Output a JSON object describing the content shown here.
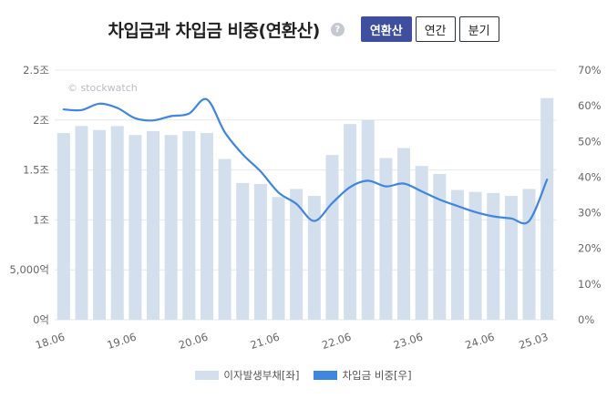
{
  "header": {
    "title": "차입금과 차입금 비중(연환산)",
    "help_icon": "?",
    "tabs": [
      {
        "label": "연환산",
        "active": true
      },
      {
        "label": "연간",
        "active": false
      },
      {
        "label": "분기",
        "active": false
      }
    ]
  },
  "watermark": "© stockwatch",
  "colors": {
    "bar": "#d3dfec",
    "line": "#3f86de",
    "active_tab": "#3d4f9e"
  },
  "chart_data": {
    "type": "bar+line",
    "x_tick_labels": [
      "18.06",
      "19.06",
      "20.06",
      "21.06",
      "22.06",
      "23.06",
      "24.06",
      "25.03"
    ],
    "y_left_ticks": [
      "0억",
      "5,000억",
      "1조",
      "1.5조",
      "2조",
      "2.5조"
    ],
    "y_right_ticks": [
      "0%",
      "10%",
      "20%",
      "30%",
      "40%",
      "50%",
      "60%",
      "70%"
    ],
    "y_left_range": [
      0,
      2.5
    ],
    "y_left_unit": "조",
    "y_right_range": [
      0,
      70
    ],
    "y_right_unit": "%",
    "grid": "horizontal",
    "legend_position": "bottom",
    "series": [
      {
        "name": "이자발생부채[좌]",
        "type": "bar",
        "axis": "left",
        "values": [
          1.87,
          1.94,
          1.9,
          1.94,
          1.85,
          1.89,
          1.85,
          1.89,
          1.87,
          1.61,
          1.37,
          1.36,
          1.23,
          1.31,
          1.24,
          1.65,
          1.96,
          2.0,
          1.62,
          1.72,
          1.54,
          1.46,
          1.3,
          1.28,
          1.27,
          1.24,
          1.31,
          2.22
        ]
      },
      {
        "name": "차입금 비중[우]",
        "type": "line",
        "axis": "right",
        "values": [
          59,
          58.8,
          60.6,
          59.4,
          56.5,
          55.9,
          57.1,
          57.8,
          61.8,
          52.6,
          46.4,
          41.6,
          35.7,
          32.5,
          27.7,
          32.7,
          37.2,
          39,
          37.4,
          38.2,
          36,
          33.7,
          31.9,
          30.2,
          29,
          28.4,
          27.7,
          39.3
        ]
      }
    ]
  }
}
